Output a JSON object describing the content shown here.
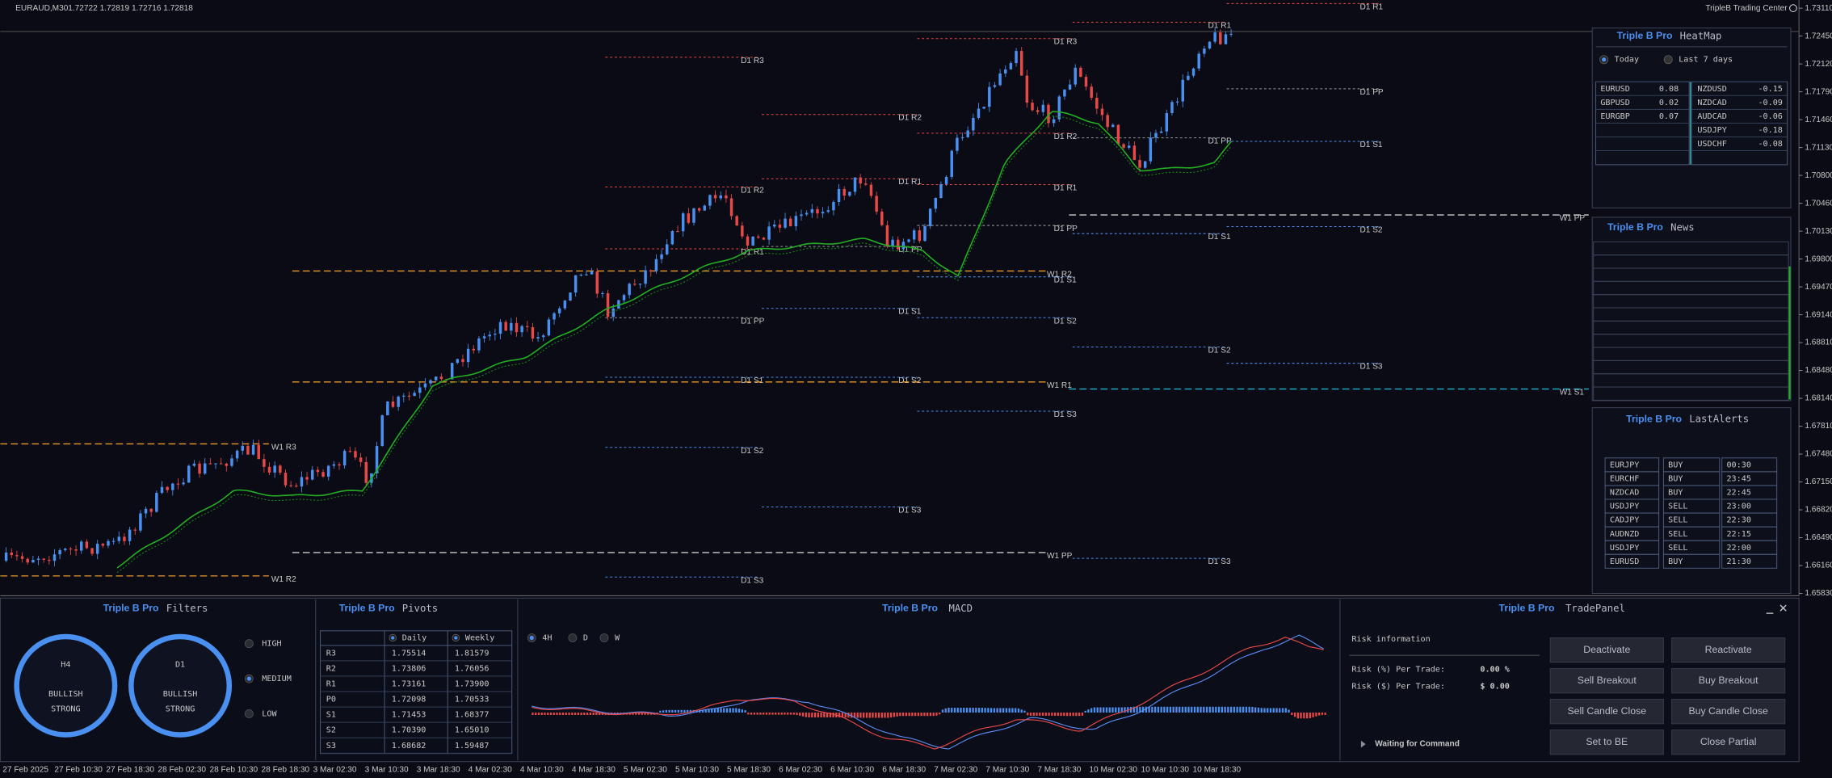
{
  "header": {
    "symbol": "EURAUD,M30",
    "ohlc": "1.72722 1.72819 1.72716 1.72818",
    "brand": "TripleB Trading Center"
  },
  "price_axis": [
    "1.73110",
    "1.72450",
    "1.72120",
    "1.71790",
    "1.71460",
    "1.71130",
    "1.70800",
    "1.70460",
    "1.70130",
    "1.69800",
    "1.69470",
    "1.69140",
    "1.68810",
    "1.68480",
    "1.68140",
    "1.67810",
    "1.67480",
    "1.67150",
    "1.66820",
    "1.66490",
    "1.66160",
    "1.65830"
  ],
  "time_axis": [
    "27 Feb 2025",
    "27 Feb 10:30",
    "27 Feb 18:30",
    "28 Feb 02:30",
    "28 Feb 10:30",
    "28 Feb 18:30",
    "3 Mar 02:30",
    "3 Mar 10:30",
    "3 Mar 18:30",
    "4 Mar 02:30",
    "4 Mar 10:30",
    "4 Mar 18:30",
    "5 Mar 02:30",
    "5 Mar 10:30",
    "5 Mar 18:30",
    "6 Mar 02:30",
    "6 Mar 10:30",
    "6 Mar 18:30",
    "7 Mar 02:30",
    "7 Mar 10:30",
    "7 Mar 18:30",
    "10 Mar 02:30",
    "10 Mar 10:30",
    "10 Mar 18:30"
  ],
  "levels": [
    "D1 R3",
    "D1 R2",
    "D1 R1",
    "D1 PP",
    "D1 S1",
    "D1 S2",
    "D1 S3",
    "D1 R2",
    "D1 R1",
    "D1 PP",
    "D1 S1",
    "D1 S2",
    "D1 S3",
    "D1 R3",
    "D1 R2",
    "D1 R1",
    "D1 PP",
    "D1 S1",
    "D1 S2",
    "D1 S3",
    "D1 R1",
    "D1 PP",
    "D1 S1",
    "D1 S2",
    "D1 S3",
    "D1 R1",
    "D1 PP",
    "D1 S1",
    "D1 S2",
    "D1 S3",
    "W1 R3",
    "W1 R2",
    "W1 R2",
    "W1 R1",
    "W1 PP",
    "W1 PP",
    "W1 S1"
  ],
  "heatmap": {
    "brand": "Triple B Pro",
    "title": "HeatMap",
    "options": [
      "Today",
      "Last 7 days"
    ],
    "positive": [
      [
        "EURUSD",
        0.08
      ],
      [
        "GBPUSD",
        0.02
      ],
      [
        "EURGBP",
        0.07
      ]
    ],
    "negative": [
      [
        "NZDUSD",
        -0.15
      ],
      [
        "NZDCAD",
        -0.09
      ],
      [
        "AUDCAD",
        -0.06
      ],
      [
        "USDJPY",
        -0.18
      ],
      [
        "USDCHF",
        -0.08
      ]
    ]
  },
  "news": {
    "brand": "Triple B Pro",
    "title": "News"
  },
  "alerts": {
    "brand": "Triple B Pro",
    "title": "LastAlerts",
    "rows": [
      [
        "EURJPY",
        "BUY",
        "00:30"
      ],
      [
        "EURCHF",
        "BUY",
        "23:45"
      ],
      [
        "NZDCAD",
        "BUY",
        "22:45"
      ],
      [
        "USDJPY",
        "SELL",
        "23:00"
      ],
      [
        "CADJPY",
        "SELL",
        "22:30"
      ],
      [
        "AUDNZD",
        "SELL",
        "22:15"
      ],
      [
        "USDJPY",
        "SELL",
        "22:00"
      ],
      [
        "EURUSD",
        "BUY",
        "21:30"
      ]
    ]
  },
  "filters": {
    "brand": "Triple B Pro",
    "title": "Filters",
    "gauges": [
      {
        "tf": "H4",
        "lines": [
          "BULLISH",
          "STRONG"
        ]
      },
      {
        "tf": "D1",
        "lines": [
          "BULLISH",
          "STRONG"
        ]
      }
    ],
    "strength": [
      "HIGH",
      "MEDIUM",
      "LOW"
    ]
  },
  "pivots": {
    "brand": "Triple B Pro",
    "title": "Pivots",
    "columns": [
      "Daily",
      "Weekly"
    ],
    "rows": [
      [
        "R3",
        "1.75514",
        "1.81579"
      ],
      [
        "R2",
        "1.73806",
        "1.76056"
      ],
      [
        "R1",
        "1.73161",
        "1.73900"
      ],
      [
        "P0",
        "1.72098",
        "1.70533"
      ],
      [
        "S1",
        "1.71453",
        "1.68377"
      ],
      [
        "S2",
        "1.70390",
        "1.65010"
      ],
      [
        "S3",
        "1.68682",
        "1.59487"
      ]
    ]
  },
  "macd": {
    "brand": "Triple B Pro",
    "title": "MACD",
    "timeframes": [
      "4H",
      "D",
      "W"
    ]
  },
  "trade_panel": {
    "brand": "Triple B Pro",
    "title": "TradePanel",
    "risk_title": "Risk information",
    "risk": [
      [
        "Risk (%) Per Trade:",
        "0.00 %"
      ],
      [
        "Risk ($) Per Trade:",
        "$ 0.00"
      ]
    ],
    "status": "Waiting for Command",
    "buttons": [
      [
        "Deactivate",
        "Reactivate"
      ],
      [
        "Sell Breakout",
        "Buy Breakout"
      ],
      [
        "Sell Candle Close",
        "Buy Candle Close"
      ],
      [
        "Set to BE",
        "Close Partial"
      ]
    ]
  }
}
